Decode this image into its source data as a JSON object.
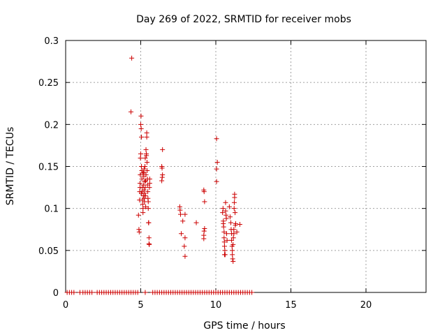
{
  "chart_data": {
    "type": "scatter",
    "title": "Day 269 of 2022, SRMTID for receiver mobs",
    "xlabel": "GPS time / hours",
    "ylabel": "SRMTID / TECUs",
    "xlim": [
      0,
      24
    ],
    "ylim": [
      0,
      0.3
    ],
    "xticks": [
      0,
      5,
      10,
      15,
      20
    ],
    "yticks": [
      0,
      0.05,
      0.1,
      0.15,
      0.2,
      0.25,
      0.3
    ],
    "xtick_labels": [
      "0",
      "5",
      "10",
      "15",
      "20"
    ],
    "ytick_labels": [
      "0",
      "0.05",
      "0.1",
      "0.15",
      "0.2",
      "0.25",
      "0.3"
    ],
    "grid": true,
    "marker": "+",
    "color": "#cc0000",
    "series": [
      {
        "name": "mobs",
        "points": [
          [
            4.4,
            0.279
          ],
          [
            4.35,
            0.215
          ],
          [
            4.85,
            0.092
          ],
          [
            4.88,
            0.075
          ],
          [
            4.9,
            0.072
          ],
          [
            4.92,
            0.11
          ],
          [
            4.93,
            0.12
          ],
          [
            4.95,
            0.13
          ],
          [
            4.97,
            0.14
          ],
          [
            4.98,
            0.16
          ],
          [
            5.0,
            0.165
          ],
          [
            5.0,
            0.2
          ],
          [
            5.02,
            0.21
          ],
          [
            5.03,
            0.195
          ],
          [
            5.05,
            0.185
          ],
          [
            5.05,
            0.15
          ],
          [
            5.07,
            0.145
          ],
          [
            5.08,
            0.135
          ],
          [
            5.1,
            0.125
          ],
          [
            5.1,
            0.12
          ],
          [
            5.12,
            0.11
          ],
          [
            5.13,
            0.105
          ],
          [
            5.15,
            0.1
          ],
          [
            5.15,
            0.095
          ],
          [
            5.17,
            0.115
          ],
          [
            5.18,
            0.128
          ],
          [
            5.2,
            0.138
          ],
          [
            5.2,
            0.143
          ],
          [
            5.22,
            0.122
          ],
          [
            5.23,
            0.112
          ],
          [
            5.25,
            0.108
          ],
          [
            5.25,
            0.118
          ],
          [
            5.27,
            0.132
          ],
          [
            5.28,
            0.15
          ],
          [
            5.3,
            0.16
          ],
          [
            5.3,
            0.125
          ],
          [
            5.32,
            0.115
          ],
          [
            5.33,
            0.102
          ],
          [
            5.35,
            0.14
          ],
          [
            5.35,
            0.17
          ],
          [
            5.37,
            0.165
          ],
          [
            5.38,
            0.163
          ],
          [
            5.4,
            0.185
          ],
          [
            5.4,
            0.19
          ],
          [
            5.42,
            0.155
          ],
          [
            5.43,
            0.145
          ],
          [
            5.45,
            0.135
          ],
          [
            5.45,
            0.128
          ],
          [
            5.47,
            0.12
          ],
          [
            5.48,
            0.112
          ],
          [
            5.5,
            0.108
          ],
          [
            5.5,
            0.1
          ],
          [
            5.52,
            0.083
          ],
          [
            5.53,
            0.083
          ],
          [
            5.55,
            0.065
          ],
          [
            5.55,
            0.058
          ],
          [
            5.57,
            0.057
          ],
          [
            5.58,
            0.125
          ],
          [
            5.6,
            0.13
          ],
          [
            5.6,
            0.135
          ],
          [
            4.95,
            0.125
          ],
          [
            5.05,
            0.118
          ],
          [
            5.15,
            0.142
          ],
          [
            5.22,
            0.147
          ],
          [
            5.33,
            0.133
          ],
          [
            6.45,
            0.17
          ],
          [
            6.4,
            0.15
          ],
          [
            6.42,
            0.148
          ],
          [
            6.45,
            0.14
          ],
          [
            6.43,
            0.137
          ],
          [
            6.4,
            0.133
          ],
          [
            7.6,
            0.102
          ],
          [
            7.62,
            0.098
          ],
          [
            7.65,
            0.093
          ],
          [
            7.7,
            0.07
          ],
          [
            7.8,
            0.085
          ],
          [
            7.95,
            0.093
          ],
          [
            7.95,
            0.065
          ],
          [
            7.9,
            0.055
          ],
          [
            7.95,
            0.043
          ],
          [
            8.7,
            0.083
          ],
          [
            9.2,
            0.122
          ],
          [
            9.22,
            0.12
          ],
          [
            9.25,
            0.108
          ],
          [
            9.25,
            0.076
          ],
          [
            9.22,
            0.073
          ],
          [
            9.2,
            0.068
          ],
          [
            9.2,
            0.064
          ],
          [
            10.05,
            0.183
          ],
          [
            10.1,
            0.155
          ],
          [
            10.05,
            0.147
          ],
          [
            10.05,
            0.132
          ],
          [
            10.45,
            0.095
          ],
          [
            10.48,
            0.1
          ],
          [
            10.5,
            0.085
          ],
          [
            10.5,
            0.082
          ],
          [
            10.52,
            0.078
          ],
          [
            10.55,
            0.072
          ],
          [
            10.55,
            0.065
          ],
          [
            10.57,
            0.06
          ],
          [
            10.58,
            0.055
          ],
          [
            10.6,
            0.05
          ],
          [
            10.62,
            0.045
          ],
          [
            10.65,
            0.107
          ],
          [
            10.65,
            0.097
          ],
          [
            10.68,
            0.092
          ],
          [
            10.7,
            0.088
          ],
          [
            10.72,
            0.07
          ],
          [
            10.75,
            0.062
          ],
          [
            10.58,
            0.045
          ],
          [
            10.9,
            0.102
          ],
          [
            10.95,
            0.09
          ],
          [
            11.0,
            0.083
          ],
          [
            11.02,
            0.075
          ],
          [
            11.05,
            0.07
          ],
          [
            11.05,
            0.062
          ],
          [
            11.08,
            0.055
          ],
          [
            11.1,
            0.05
          ],
          [
            11.1,
            0.045
          ],
          [
            11.12,
            0.04
          ],
          [
            11.15,
            0.037
          ],
          [
            11.15,
            0.057
          ],
          [
            11.17,
            0.065
          ],
          [
            11.2,
            0.07
          ],
          [
            11.2,
            0.075
          ],
          [
            11.22,
            0.1
          ],
          [
            11.23,
            0.107
          ],
          [
            11.25,
            0.113
          ],
          [
            11.25,
            0.117
          ],
          [
            11.28,
            0.095
          ],
          [
            11.3,
            0.08
          ],
          [
            11.32,
            0.082
          ],
          [
            11.4,
            0.072
          ],
          [
            11.6,
            0.081
          ],
          [
            0.1,
            0
          ],
          [
            0.25,
            0
          ],
          [
            0.4,
            0
          ],
          [
            0.55,
            0
          ],
          [
            0.95,
            0
          ],
          [
            1.15,
            0
          ],
          [
            1.3,
            0
          ],
          [
            1.45,
            0
          ],
          [
            1.6,
            0
          ],
          [
            1.75,
            0
          ],
          [
            2.1,
            0
          ],
          [
            2.25,
            0
          ],
          [
            2.4,
            0
          ],
          [
            2.55,
            0
          ],
          [
            2.7,
            0
          ],
          [
            2.85,
            0
          ],
          [
            3.0,
            0
          ],
          [
            3.15,
            0
          ],
          [
            3.3,
            0
          ],
          [
            3.45,
            0
          ],
          [
            3.6,
            0
          ],
          [
            3.75,
            0
          ],
          [
            3.9,
            0
          ],
          [
            4.05,
            0
          ],
          [
            4.2,
            0
          ],
          [
            4.35,
            0
          ],
          [
            4.5,
            0
          ],
          [
            4.65,
            0
          ],
          [
            4.8,
            0
          ],
          [
            5.3,
            0
          ],
          [
            5.8,
            0
          ],
          [
            5.95,
            0
          ],
          [
            6.1,
            0
          ],
          [
            6.25,
            0
          ],
          [
            6.4,
            0
          ],
          [
            6.55,
            0
          ],
          [
            6.7,
            0
          ],
          [
            6.85,
            0
          ],
          [
            7.0,
            0
          ],
          [
            7.15,
            0
          ],
          [
            7.3,
            0
          ],
          [
            7.45,
            0
          ],
          [
            7.6,
            0
          ],
          [
            7.75,
            0
          ],
          [
            7.9,
            0
          ],
          [
            8.05,
            0
          ],
          [
            8.2,
            0
          ],
          [
            8.35,
            0
          ],
          [
            8.5,
            0
          ],
          [
            8.65,
            0
          ],
          [
            8.8,
            0
          ],
          [
            8.95,
            0
          ],
          [
            9.1,
            0
          ],
          [
            9.25,
            0
          ],
          [
            9.4,
            0
          ],
          [
            9.55,
            0
          ],
          [
            9.7,
            0
          ],
          [
            9.85,
            0
          ],
          [
            10.0,
            0
          ],
          [
            10.15,
            0
          ],
          [
            10.3,
            0
          ],
          [
            10.45,
            0
          ],
          [
            10.6,
            0
          ],
          [
            10.75,
            0
          ],
          [
            10.9,
            0
          ],
          [
            11.05,
            0
          ],
          [
            11.2,
            0
          ],
          [
            11.35,
            0
          ],
          [
            11.5,
            0
          ],
          [
            11.65,
            0
          ],
          [
            11.8,
            0
          ],
          [
            11.95,
            0
          ],
          [
            12.1,
            0
          ],
          [
            12.25,
            0
          ],
          [
            12.4,
            0
          ]
        ]
      }
    ]
  }
}
